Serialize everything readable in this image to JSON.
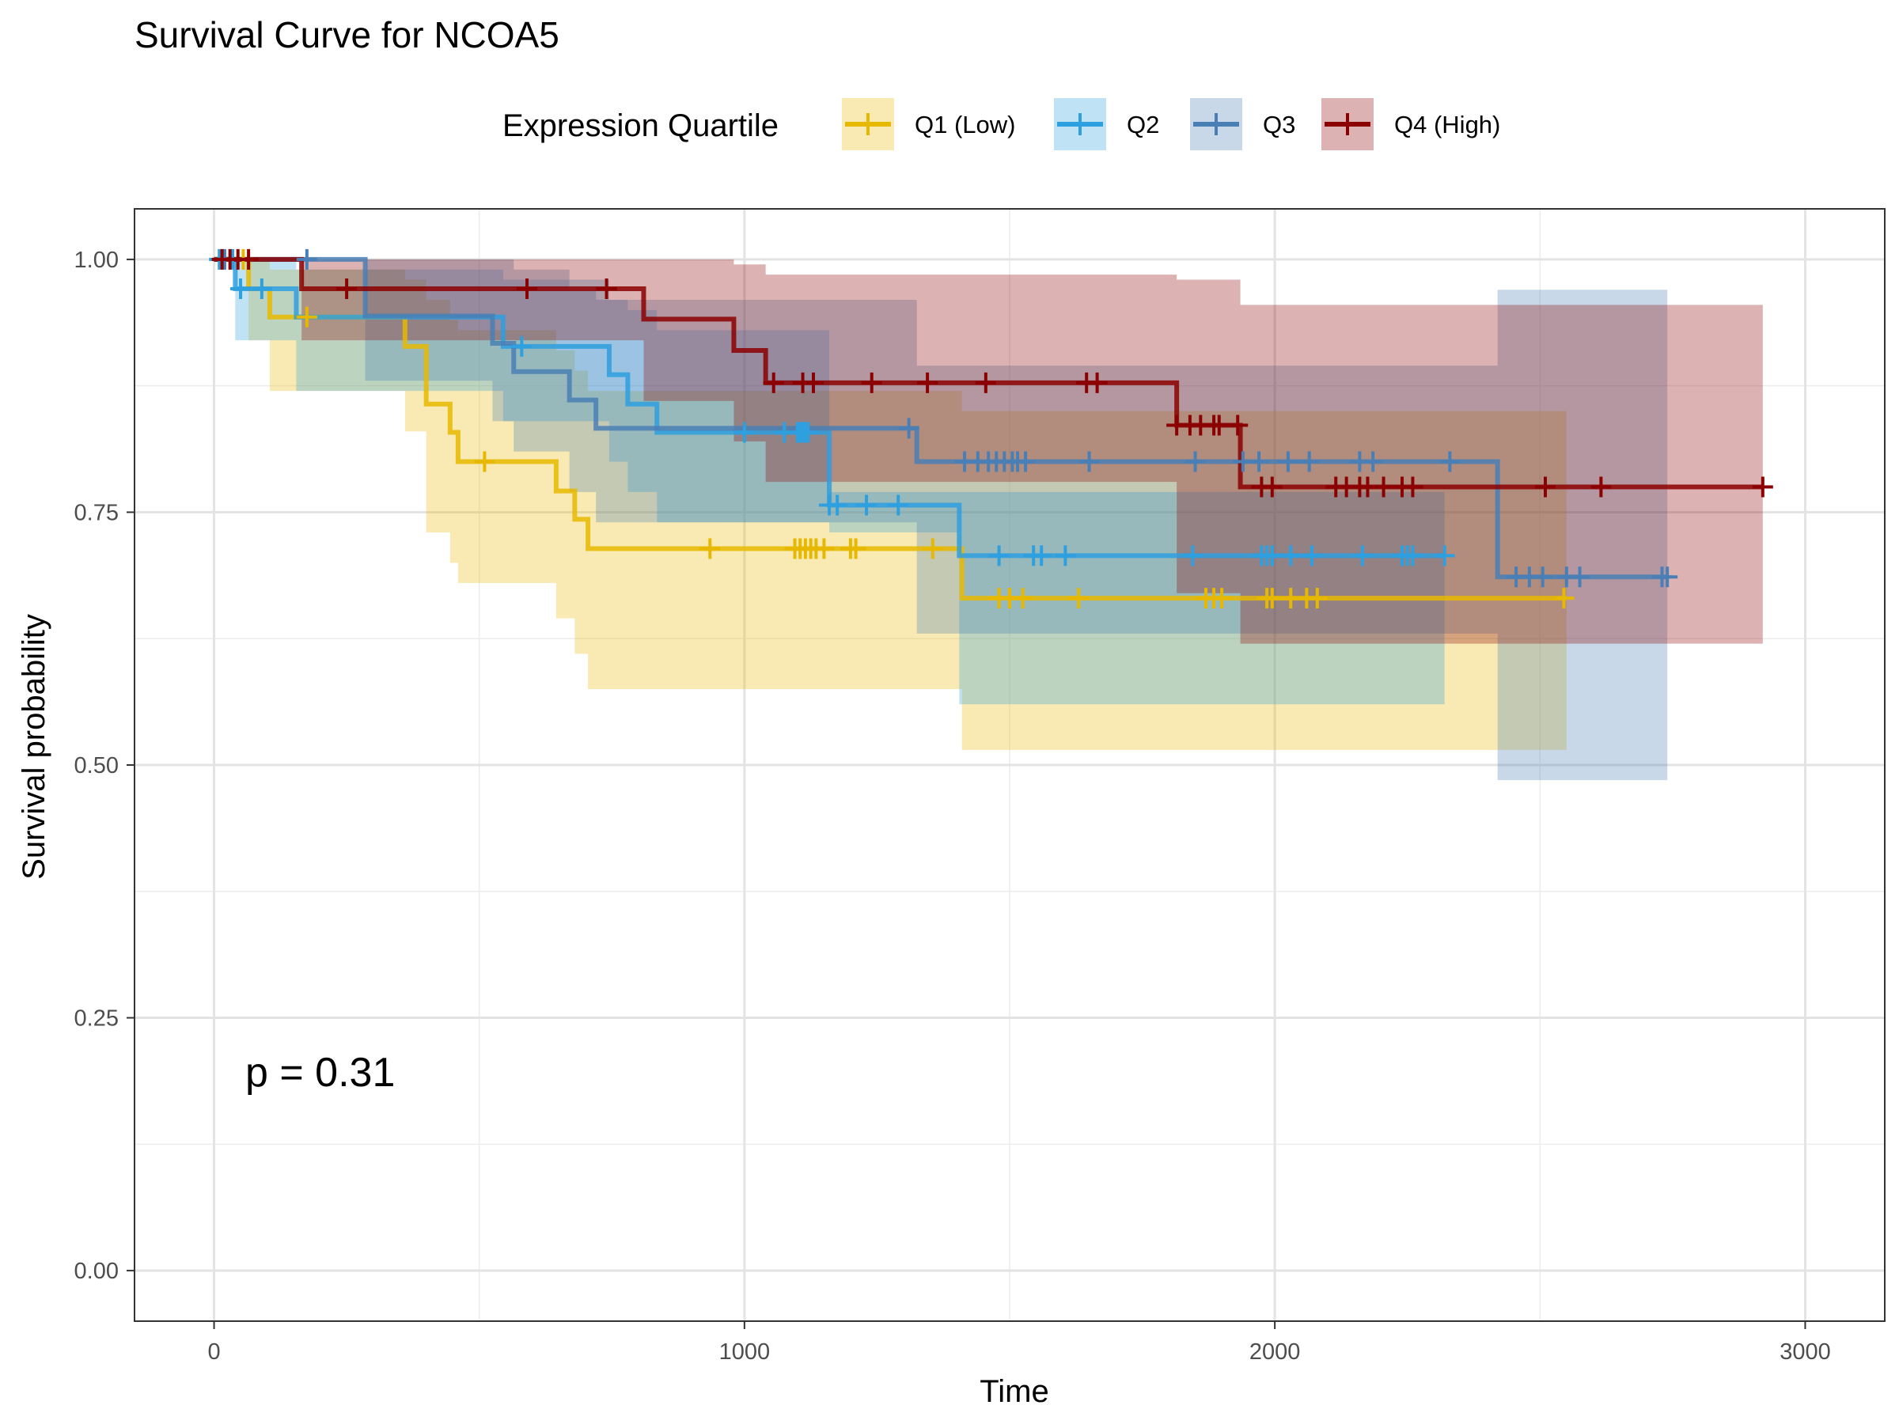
{
  "chart_data": {
    "type": "line",
    "title": "Survival Curve for NCOA5",
    "xlabel": "Time",
    "ylabel": "Survival probability",
    "xlim": [
      -150,
      3150
    ],
    "ylim": [
      -0.05,
      1.05
    ],
    "xticks": [
      0,
      1000,
      2000,
      3000
    ],
    "xtick_labels": [
      "0",
      "1000",
      "2000",
      "3000"
    ],
    "yticks": [
      0,
      0.25,
      0.5,
      0.75,
      1.0
    ],
    "ytick_labels": [
      "0.00",
      "0.25",
      "0.50",
      "0.75",
      "1.00"
    ],
    "grid": true,
    "legend": {
      "title": "Expression Quartile",
      "placement": "top",
      "entries": [
        "Q1 (Low)",
        "Q2",
        "Q3",
        "Q4 (High)"
      ]
    },
    "annotation": "p = 0.31",
    "series": [
      {
        "name": "Q1 (Low)",
        "color": "#E7B800",
        "steps": [
          [
            0,
            1.0
          ],
          [
            65,
            0.971
          ],
          [
            105,
            0.943
          ],
          [
            360,
            0.914
          ],
          [
            400,
            0.857
          ],
          [
            445,
            0.829
          ],
          [
            460,
            0.8
          ],
          [
            645,
            0.771
          ],
          [
            680,
            0.743
          ],
          [
            705,
            0.714
          ],
          [
            1410,
            0.665
          ],
          [
            2550,
            0.665
          ]
        ],
        "ci": [
          [
            0,
            1.0,
            1.0
          ],
          [
            65,
            1.0,
            0.92
          ],
          [
            105,
            0.99,
            0.87
          ],
          [
            360,
            0.98,
            0.83
          ],
          [
            400,
            0.96,
            0.73
          ],
          [
            445,
            0.94,
            0.7
          ],
          [
            460,
            0.93,
            0.68
          ],
          [
            645,
            0.91,
            0.645
          ],
          [
            680,
            0.89,
            0.61
          ],
          [
            705,
            0.87,
            0.575
          ],
          [
            1410,
            0.85,
            0.515
          ],
          [
            2550,
            0.85,
            0.515
          ]
        ],
        "censor": [
          15,
          55,
          175,
          510,
          935,
          1095,
          1105,
          1115,
          1125,
          1135,
          1150,
          1200,
          1210,
          1355,
          1480,
          1500,
          1525,
          1630,
          1870,
          1885,
          1900,
          1985,
          1995,
          2030,
          2060,
          2080,
          2545
        ]
      },
      {
        "name": "Q2",
        "color": "#2E9FDF",
        "steps": [
          [
            0,
            1.0
          ],
          [
            40,
            0.971
          ],
          [
            155,
            0.943
          ],
          [
            545,
            0.914
          ],
          [
            745,
            0.886
          ],
          [
            780,
            0.857
          ],
          [
            835,
            0.829
          ],
          [
            1160,
            0.757
          ],
          [
            1405,
            0.707
          ],
          [
            2320,
            0.707
          ]
        ],
        "ci": [
          [
            0,
            1.0,
            1.0
          ],
          [
            40,
            1.0,
            0.92
          ],
          [
            155,
            0.99,
            0.87
          ],
          [
            545,
            0.98,
            0.84
          ],
          [
            745,
            0.96,
            0.8
          ],
          [
            780,
            0.95,
            0.77
          ],
          [
            835,
            0.93,
            0.74
          ],
          [
            1160,
            0.77,
            0.73
          ],
          [
            1405,
            0.77,
            0.56
          ],
          [
            2320,
            0.77,
            0.56
          ]
        ],
        "censor": [
          10,
          35,
          50,
          90,
          580,
          1000,
          1075,
          1100,
          1105,
          1110,
          1115,
          1120,
          1160,
          1175,
          1230,
          1290,
          1480,
          1545,
          1560,
          1605,
          1845,
          1975,
          1985,
          1995,
          2030,
          2070,
          2165,
          2240,
          2250,
          2260,
          2320
        ]
      },
      {
        "name": "Q3",
        "color": "#4A7FB5",
        "steps": [
          [
            0,
            1.0
          ],
          [
            285,
            0.944
          ],
          [
            525,
            0.917
          ],
          [
            565,
            0.889
          ],
          [
            670,
            0.861
          ],
          [
            720,
            0.833
          ],
          [
            1325,
            0.8
          ],
          [
            2420,
            0.686
          ],
          [
            2740,
            0.686
          ]
        ],
        "ci": [
          [
            0,
            1.0,
            1.0
          ],
          [
            285,
            1.0,
            0.88
          ],
          [
            525,
            1.0,
            0.84
          ],
          [
            565,
            0.99,
            0.81
          ],
          [
            670,
            0.97,
            0.77
          ],
          [
            720,
            0.96,
            0.74
          ],
          [
            1325,
            0.895,
            0.63
          ],
          [
            2420,
            0.97,
            0.485
          ],
          [
            2740,
            0.97,
            0.485
          ]
        ],
        "censor": [
          20,
          175,
          1310,
          1415,
          1440,
          1460,
          1475,
          1490,
          1505,
          1515,
          1530,
          1650,
          1850,
          1940,
          1970,
          2025,
          2065,
          2160,
          2185,
          2330,
          2455,
          2480,
          2505,
          2550,
          2575,
          2730,
          2740
        ]
      },
      {
        "name": "Q4 (High)",
        "color": "#8B0000",
        "steps": [
          [
            0,
            1.0
          ],
          [
            165,
            0.971
          ],
          [
            810,
            0.941
          ],
          [
            980,
            0.91
          ],
          [
            1040,
            0.878
          ],
          [
            1815,
            0.836
          ],
          [
            1935,
            0.775
          ],
          [
            2920,
            0.775
          ]
        ],
        "ci": [
          [
            0,
            1.0,
            1.0
          ],
          [
            165,
            1.0,
            0.92
          ],
          [
            810,
            1.0,
            0.86
          ],
          [
            980,
            0.995,
            0.82
          ],
          [
            1040,
            0.985,
            0.78
          ],
          [
            1815,
            0.98,
            0.67
          ],
          [
            1935,
            0.955,
            0.62
          ],
          [
            2920,
            0.955,
            0.62
          ]
        ],
        "censor": [
          15,
          30,
          45,
          65,
          250,
          590,
          740,
          1055,
          1110,
          1130,
          1240,
          1345,
          1455,
          1645,
          1665,
          1815,
          1840,
          1860,
          1885,
          1895,
          1930,
          1975,
          1995,
          2115,
          2135,
          2160,
          2175,
          2205,
          2240,
          2260,
          2510,
          2615,
          2920
        ]
      }
    ]
  }
}
